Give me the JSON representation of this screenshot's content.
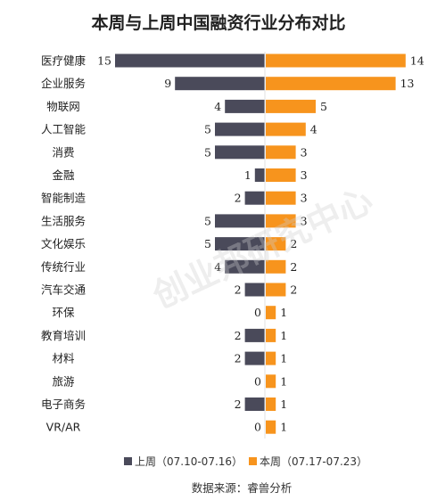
{
  "chart_data": {
    "type": "bar",
    "orientation": "horizontal-diverging",
    "title": "本周与上周中国融资行业分布对比",
    "categories": [
      "医疗健康",
      "企业服务",
      "物联网",
      "人工智能",
      "消费",
      "金融",
      "智能制造",
      "生活服务",
      "文化娱乐",
      "传统行业",
      "汽车交通",
      "环保",
      "教育培训",
      "材料",
      "旅游",
      "电子商务",
      "VR/AR"
    ],
    "series": [
      {
        "name": "上周（07.10-07.16）",
        "color": "#4a4a5a",
        "values": [
          15,
          9,
          4,
          5,
          5,
          1,
          2,
          5,
          5,
          4,
          2,
          0,
          2,
          2,
          0,
          2,
          0
        ]
      },
      {
        "name": "本周（07.17-07.23）",
        "color": "#f7941d",
        "values": [
          14,
          13,
          5,
          4,
          3,
          3,
          3,
          3,
          2,
          2,
          2,
          1,
          1,
          1,
          1,
          1,
          1
        ]
      }
    ],
    "legend_position": "bottom",
    "grid": false,
    "source": "数据来源：睿兽分析",
    "watermark": "创业邦研究中心"
  }
}
